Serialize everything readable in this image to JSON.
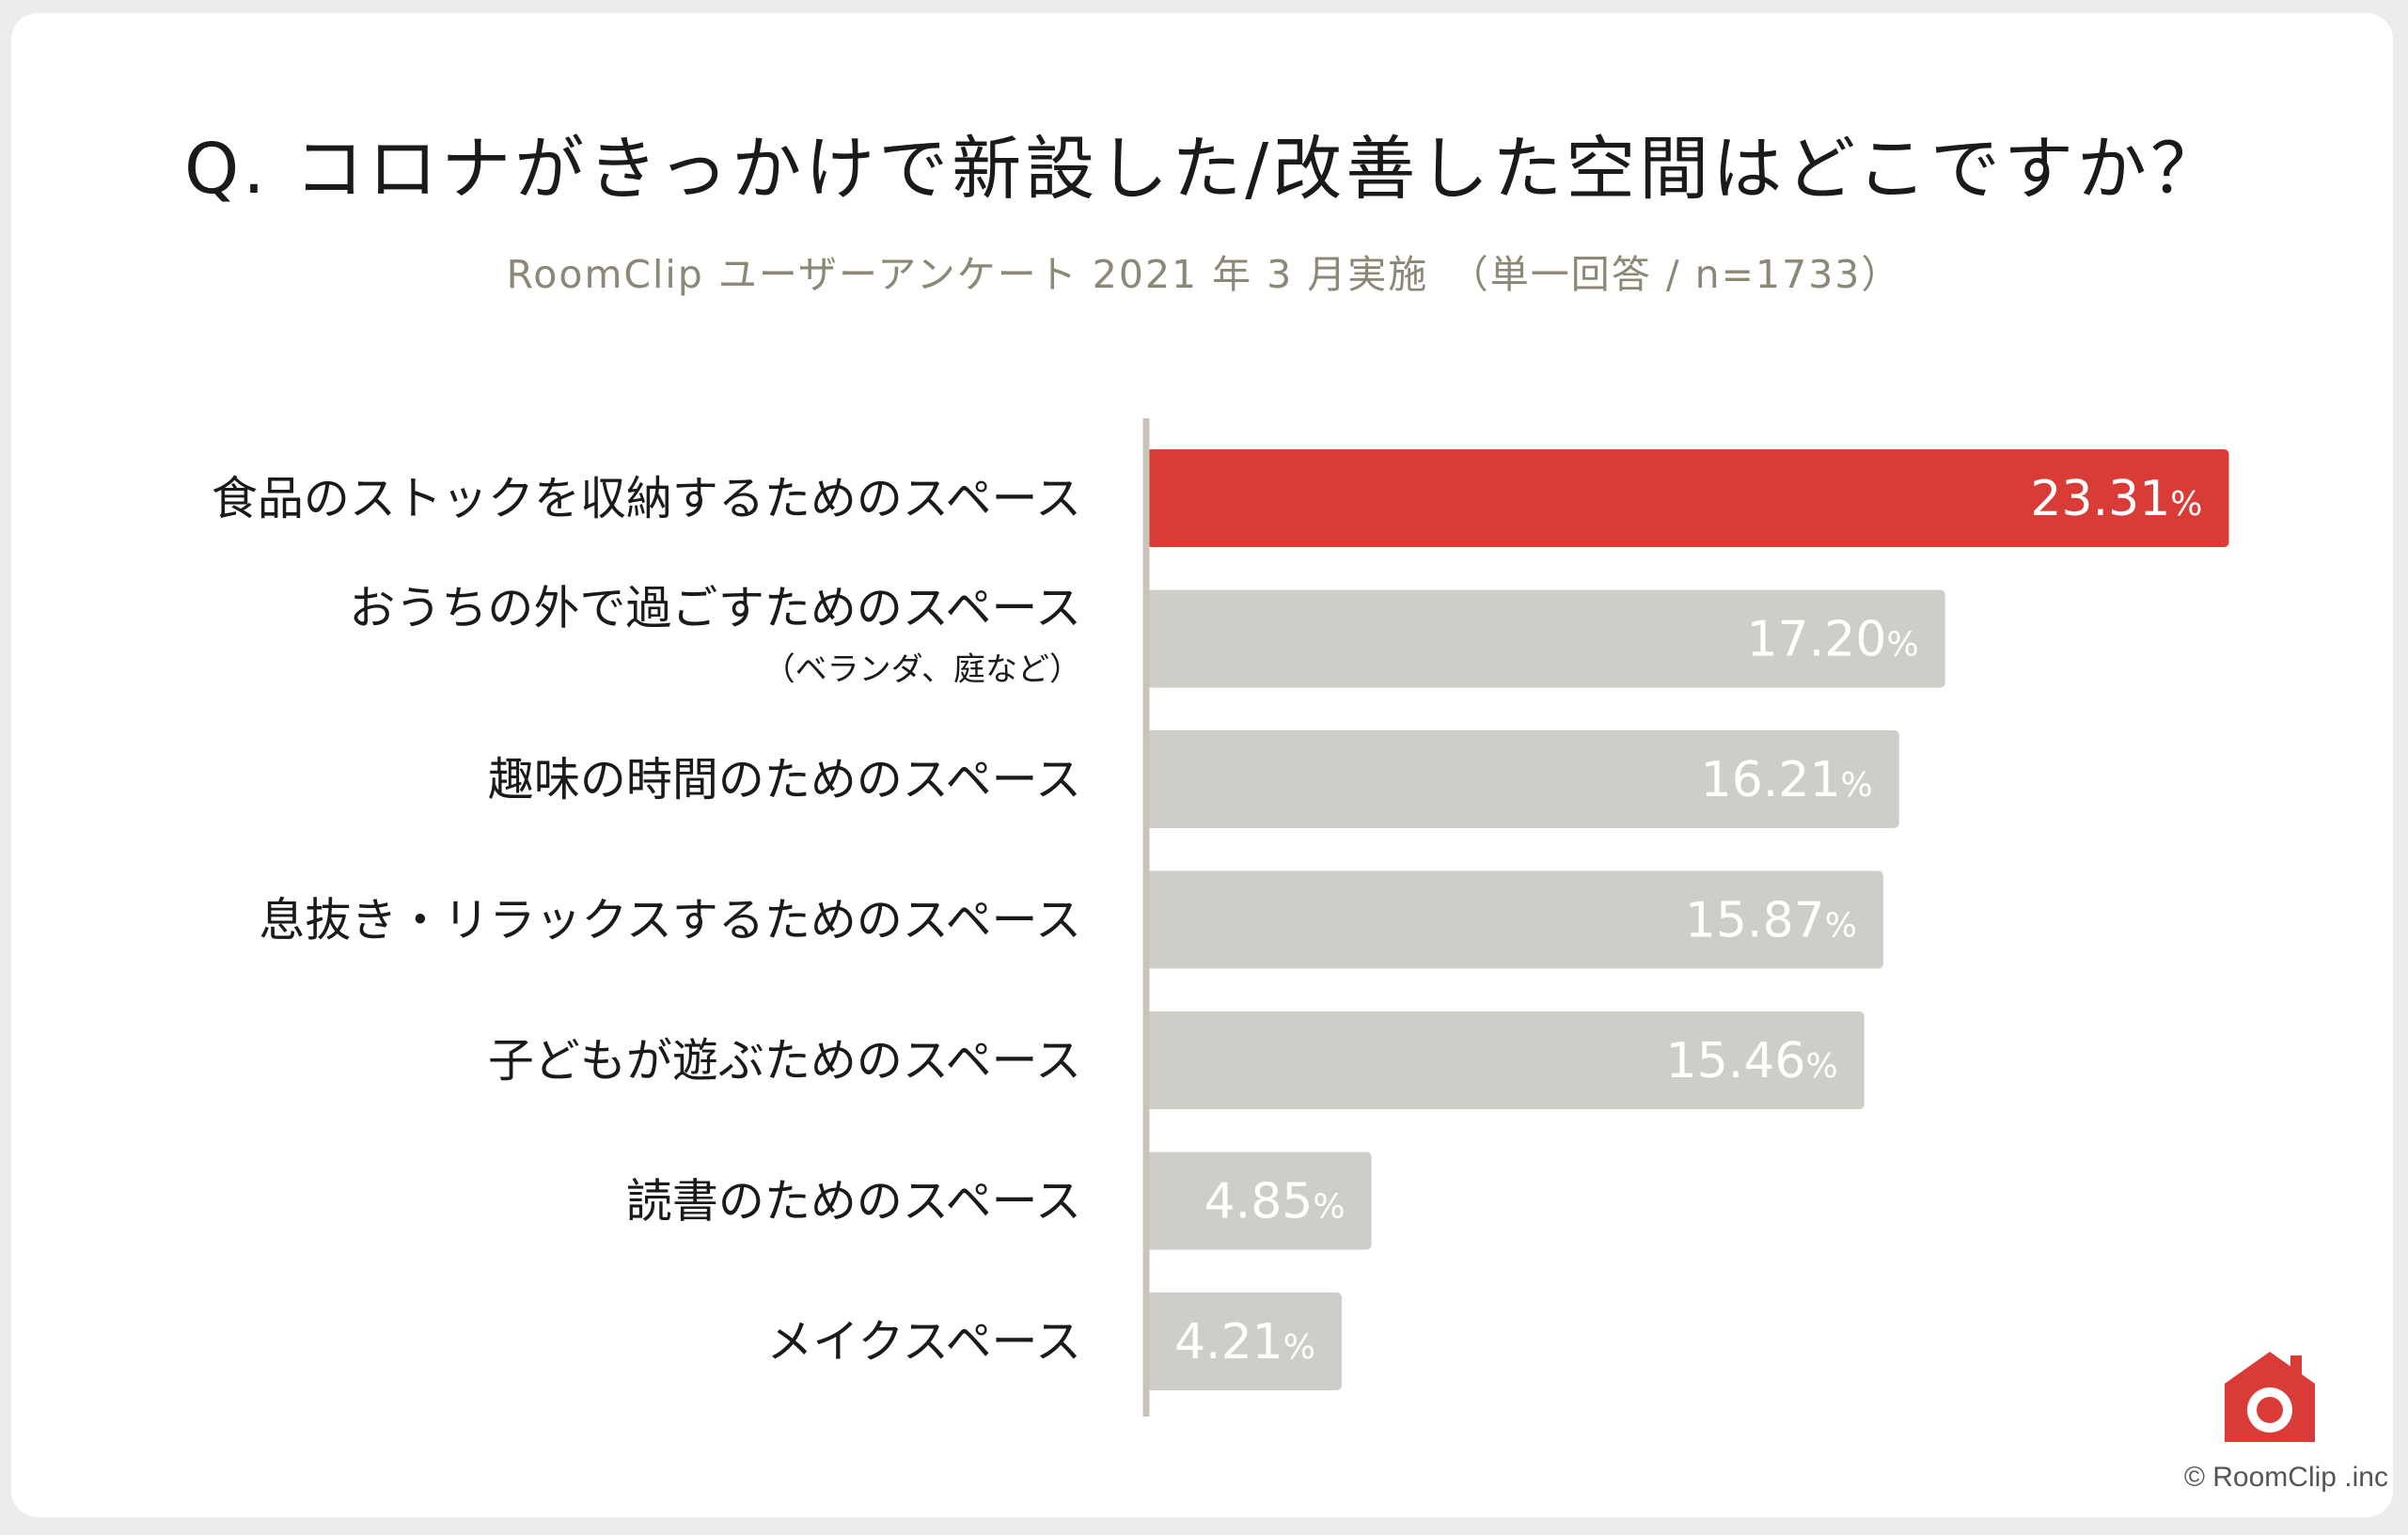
{
  "title": "Q. コロナがきっかけで新設した/改善した空間はどこですか？",
  "subtitle": "RoomClip ユーザーアンケート 2021 年 3 月実施　（単一回答 / n=1733）",
  "chart_data": {
    "type": "bar",
    "orientation": "horizontal",
    "title": "Q. コロナがきっかけで新設した/改善した空間はどこですか？",
    "categories": [
      "食品のストックを収納するためのスペース",
      "おうちの外で過ごすためのスペース",
      "趣味の時間のためのスペース",
      "息抜き・リラックスするためのスペース",
      "子どもが遊ぶためのスペース",
      "読書のためのスペース",
      "メイクスペース"
    ],
    "notes": [
      "",
      "（ベランダ、庭など）",
      "",
      "",
      "",
      "",
      ""
    ],
    "values": [
      23.31,
      17.2,
      16.21,
      15.87,
      15.46,
      4.85,
      4.21
    ],
    "value_labels": [
      "23.31",
      "17.20",
      "16.21",
      "15.87",
      "15.46",
      "4.85",
      "4.21"
    ],
    "unit": "%",
    "highlight_index": 0,
    "colors": {
      "highlight": "#d93b36",
      "bar": "#cfcdc7",
      "axis": "#c9c4b8",
      "value_text": "#ffffff"
    },
    "xlabel": "",
    "ylabel": ""
  },
  "copyright": "© RoomClip .inc",
  "logo_icon": "roomclip-house-camera-icon"
}
